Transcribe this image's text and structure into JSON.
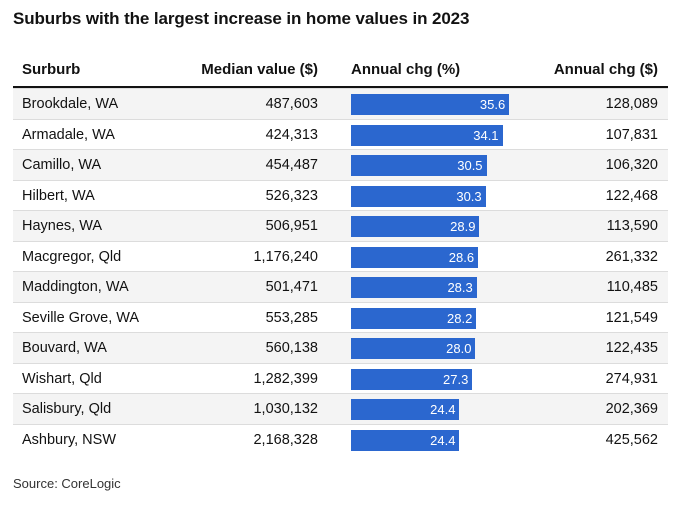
{
  "title": "Suburbs with the largest increase in home values in 2023",
  "source": "Source: CoreLogic",
  "colors": {
    "bar": "#2b67cf",
    "row_alt": "#f4f4f4"
  },
  "chart_data": {
    "type": "table",
    "columns": [
      "Surburb",
      "Median value ($)",
      "Annual chg (%)",
      "Annual chg ($)"
    ],
    "bar_max": 45,
    "rows": [
      {
        "suburb": "Brookdale, WA",
        "median": "487,603",
        "chg_pct": 35.6,
        "chg_pct_label": "35.6",
        "chg_dollar": "128,089"
      },
      {
        "suburb": "Armadale, WA",
        "median": "424,313",
        "chg_pct": 34.1,
        "chg_pct_label": "34.1",
        "chg_dollar": "107,831"
      },
      {
        "suburb": "Camillo, WA",
        "median": "454,487",
        "chg_pct": 30.5,
        "chg_pct_label": "30.5",
        "chg_dollar": "106,320"
      },
      {
        "suburb": "Hilbert, WA",
        "median": "526,323",
        "chg_pct": 30.3,
        "chg_pct_label": "30.3",
        "chg_dollar": "122,468"
      },
      {
        "suburb": "Haynes, WA",
        "median": "506,951",
        "chg_pct": 28.9,
        "chg_pct_label": "28.9",
        "chg_dollar": "113,590"
      },
      {
        "suburb": "Macgregor, Qld",
        "median": "1,176,240",
        "chg_pct": 28.6,
        "chg_pct_label": "28.6",
        "chg_dollar": "261,332"
      },
      {
        "suburb": "Maddington, WA",
        "median": "501,471",
        "chg_pct": 28.3,
        "chg_pct_label": "28.3",
        "chg_dollar": "110,485"
      },
      {
        "suburb": "Seville Grove, WA",
        "median": "553,285",
        "chg_pct": 28.2,
        "chg_pct_label": "28.2",
        "chg_dollar": "121,549"
      },
      {
        "suburb": "Bouvard, WA",
        "median": "560,138",
        "chg_pct": 28.0,
        "chg_pct_label": "28.0",
        "chg_dollar": "122,435"
      },
      {
        "suburb": "Wishart, Qld",
        "median": "1,282,399",
        "chg_pct": 27.3,
        "chg_pct_label": "27.3",
        "chg_dollar": "274,931"
      },
      {
        "suburb": "Salisbury, Qld",
        "median": "1,030,132",
        "chg_pct": 24.4,
        "chg_pct_label": "24.4",
        "chg_dollar": "202,369"
      },
      {
        "suburb": "Ashbury, NSW",
        "median": "2,168,328",
        "chg_pct": 24.4,
        "chg_pct_label": "24.4",
        "chg_dollar": "425,562"
      }
    ]
  }
}
